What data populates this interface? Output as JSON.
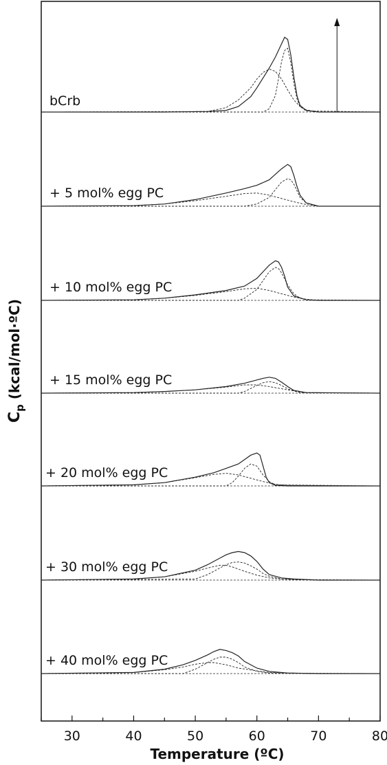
{
  "chart_data": {
    "type": "line",
    "title": "",
    "xlabel": "Temperature (ºC)",
    "ylabel": "Cp (kcal/mol·ºC)",
    "ylabel_main": "C",
    "ylabel_sub": "p",
    "ylabel_rest": " (kcal/mol·ºC)",
    "xlim": [
      25,
      80
    ],
    "xticks": [
      30,
      40,
      50,
      60,
      70,
      80
    ],
    "grid": false,
    "legend": "none",
    "scale_arrow_at_x": 73,
    "line_color": "#222222",
    "series": [
      {
        "name": "bCrb",
        "label": "bCrb",
        "measured": {
          "x": [
            25,
            45,
            52,
            55,
            57,
            59,
            60,
            61,
            62,
            63,
            63.5,
            64,
            64.5,
            65,
            65.5,
            66,
            66.5,
            67,
            68,
            70,
            80
          ],
          "y": [
            0,
            0,
            0.05,
            0.15,
            0.5,
            1.4,
            2.2,
            3.1,
            4.0,
            5.0,
            5.6,
            6.2,
            6.8,
            6.6,
            5.2,
            3.2,
            1.5,
            0.6,
            0.15,
            0,
            0
          ]
        },
        "components": [
          {
            "x": [
              25,
              52,
              55,
              57,
              59,
              60,
              61,
              62,
              63,
              64,
              65,
              66,
              67,
              68,
              70,
              80
            ],
            "y": [
              0,
              0.05,
              0.4,
              1.1,
              2.2,
              3.0,
              3.6,
              3.9,
              3.7,
              3.0,
              2.0,
              1.1,
              0.5,
              0.2,
              0,
              0
            ]
          },
          {
            "x": [
              25,
              61,
              62,
              63,
              63.5,
              64,
              64.5,
              65,
              65.5,
              66,
              66.5,
              67,
              68,
              80
            ],
            "y": [
              0,
              0,
              0.3,
              1.5,
              3.0,
              4.6,
              5.6,
              5.8,
              4.5,
              2.6,
              1.2,
              0.5,
              0.1,
              0
            ]
          }
        ]
      },
      {
        "name": "+ 5 mol% egg PC",
        "label": "+ 5 mol% egg PC",
        "measured": {
          "x": [
            25,
            40,
            45,
            50,
            55,
            58,
            60,
            62,
            63,
            64,
            65,
            65.5,
            66,
            66.5,
            67,
            68,
            70,
            80
          ],
          "y": [
            0,
            0.05,
            0.2,
            0.6,
            1.2,
            1.6,
            1.9,
            2.4,
            2.9,
            3.4,
            3.8,
            3.6,
            2.8,
            1.8,
            1.0,
            0.3,
            0,
            0
          ]
        },
        "components": [
          {
            "x": [
              25,
              40,
              45,
              50,
              55,
              58,
              60,
              62,
              64,
              66,
              68,
              70,
              80
            ],
            "y": [
              0,
              0.05,
              0.2,
              0.5,
              0.9,
              1.15,
              1.2,
              1.0,
              0.7,
              0.4,
              0.15,
              0,
              0
            ]
          },
          {
            "x": [
              25,
              58,
              60,
              62,
              63,
              64,
              65,
              65.5,
              66,
              66.5,
              67,
              68,
              70,
              80
            ],
            "y": [
              0,
              0,
              0.2,
              0.8,
              1.5,
              2.2,
              2.5,
              2.4,
              2.0,
              1.4,
              0.8,
              0.3,
              0,
              0
            ]
          }
        ]
      },
      {
        "name": "+ 10 mol% egg PC",
        "label": "+ 10 mol% egg PC",
        "measured": {
          "x": [
            25,
            40,
            45,
            50,
            55,
            58,
            60,
            61,
            62,
            63,
            63.5,
            64,
            64.5,
            65,
            66,
            68,
            70,
            80
          ],
          "y": [
            0,
            0.05,
            0.2,
            0.5,
            0.9,
            1.3,
            2.0,
            2.6,
            3.2,
            3.6,
            3.5,
            3.0,
            2.2,
            1.2,
            0.4,
            0.05,
            0,
            0
          ]
        },
        "components": [
          {
            "x": [
              25,
              40,
              45,
              50,
              55,
              58,
              60,
              62,
              64,
              66,
              68,
              70,
              80
            ],
            "y": [
              0,
              0.05,
              0.2,
              0.45,
              0.8,
              1.05,
              1.1,
              0.9,
              0.6,
              0.3,
              0.1,
              0,
              0
            ]
          },
          {
            "x": [
              25,
              57,
              58,
              60,
              61,
              62,
              63,
              63.5,
              64,
              65,
              66,
              67,
              68,
              80
            ],
            "y": [
              0,
              0,
              0.2,
              1.0,
              1.8,
              2.6,
              3.0,
              2.9,
              2.5,
              1.4,
              0.6,
              0.2,
              0.05,
              0
            ]
          }
        ]
      },
      {
        "name": "+ 15 mol% egg PC",
        "label": "+ 15 mol% egg PC",
        "measured": {
          "x": [
            25,
            40,
            45,
            50,
            55,
            58,
            60,
            61,
            62,
            63,
            64,
            65,
            66,
            68,
            80
          ],
          "y": [
            0,
            0.05,
            0.15,
            0.3,
            0.6,
            0.9,
            1.2,
            1.35,
            1.45,
            1.35,
            1.0,
            0.6,
            0.25,
            0.05,
            0
          ]
        },
        "components": [
          {
            "x": [
              25,
              40,
              45,
              50,
              55,
              58,
              60,
              62,
              64,
              66,
              68,
              80
            ],
            "y": [
              0,
              0.05,
              0.15,
              0.3,
              0.55,
              0.75,
              0.75,
              0.6,
              0.4,
              0.2,
              0.05,
              0
            ]
          },
          {
            "x": [
              25,
              57,
              58,
              60,
              61,
              62,
              63,
              64,
              65,
              66,
              67,
              80
            ],
            "y": [
              0,
              0,
              0.15,
              0.7,
              0.95,
              1.05,
              0.95,
              0.7,
              0.4,
              0.2,
              0.05,
              0
            ]
          }
        ]
      },
      {
        "name": "+ 20 mol% egg PC",
        "label": "+ 20 mol% egg PC",
        "measured": {
          "x": [
            25,
            40,
            45,
            50,
            53,
            55,
            57,
            58,
            59,
            60,
            60.5,
            61,
            61.5,
            62,
            63,
            65,
            80
          ],
          "y": [
            0,
            0.1,
            0.3,
            0.8,
            1.2,
            1.6,
            2.0,
            2.4,
            2.8,
            3.0,
            2.8,
            1.8,
            0.8,
            0.3,
            0.05,
            0,
            0
          ]
        },
        "components": [
          {
            "x": [
              25,
              40,
              45,
              50,
              53,
              55,
              57,
              59,
              61,
              63,
              65,
              80
            ],
            "y": [
              0,
              0.1,
              0.3,
              0.75,
              1.05,
              1.15,
              1.0,
              0.7,
              0.4,
              0.15,
              0.05,
              0
            ]
          },
          {
            "x": [
              25,
              55,
              56,
              57,
              58,
              59,
              60,
              61,
              62,
              63,
              80
            ],
            "y": [
              0,
              0,
              0.3,
              0.9,
              1.6,
              2.0,
              1.8,
              1.0,
              0.4,
              0.1,
              0
            ]
          }
        ]
      },
      {
        "name": "+ 30 mol% egg PC",
        "label": "+ 30 mol% egg PC",
        "measured": {
          "x": [
            25,
            40,
            45,
            50,
            52,
            54,
            55,
            56,
            57,
            58,
            59,
            60,
            61,
            62,
            64,
            66,
            70,
            80
          ],
          "y": [
            0,
            0.1,
            0.3,
            0.9,
            1.4,
            2.0,
            2.3,
            2.5,
            2.6,
            2.5,
            2.2,
            1.7,
            1.0,
            0.5,
            0.2,
            0.1,
            0,
            0
          ]
        },
        "components": [
          {
            "x": [
              25,
              40,
              45,
              50,
              52,
              54,
              55,
              56,
              58,
              60,
              62,
              64,
              66,
              70,
              80
            ],
            "y": [
              0,
              0.1,
              0.3,
              0.8,
              1.1,
              1.35,
              1.35,
              1.2,
              0.8,
              0.45,
              0.2,
              0.1,
              0.05,
              0,
              0
            ]
          },
          {
            "x": [
              25,
              50,
              52,
              54,
              55,
              56,
              57,
              58,
              59,
              60,
              61,
              62,
              64,
              66,
              80
            ],
            "y": [
              0,
              0.1,
              0.5,
              1.1,
              1.4,
              1.6,
              1.65,
              1.55,
              1.3,
              1.0,
              0.6,
              0.35,
              0.1,
              0.05,
              0
            ]
          }
        ]
      },
      {
        "name": "+ 40 mol% egg PC",
        "label": "+ 40 mol% egg PC",
        "measured": {
          "x": [
            25,
            40,
            45,
            48,
            50,
            52,
            53,
            54,
            55,
            56,
            57,
            58,
            60,
            62,
            65,
            70,
            80
          ],
          "y": [
            0,
            0.1,
            0.4,
            0.8,
            1.2,
            1.7,
            2.0,
            2.2,
            2.1,
            1.9,
            1.6,
            1.1,
            0.5,
            0.2,
            0.05,
            0,
            0
          ]
        },
        "components": [
          {
            "x": [
              25,
              40,
              45,
              48,
              50,
              52,
              53,
              55,
              57,
              60,
              62,
              65,
              70,
              80
            ],
            "y": [
              0,
              0.1,
              0.35,
              0.6,
              0.85,
              1.0,
              1.0,
              0.8,
              0.5,
              0.25,
              0.1,
              0.05,
              0,
              0
            ]
          },
          {
            "x": [
              25,
              48,
              50,
              52,
              53,
              54,
              55,
              56,
              57,
              58,
              60,
              62,
              80
            ],
            "y": [
              0,
              0,
              0.4,
              1.0,
              1.3,
              1.5,
              1.5,
              1.3,
              1.0,
              0.6,
              0.2,
              0.05,
              0
            ]
          }
        ]
      }
    ]
  }
}
